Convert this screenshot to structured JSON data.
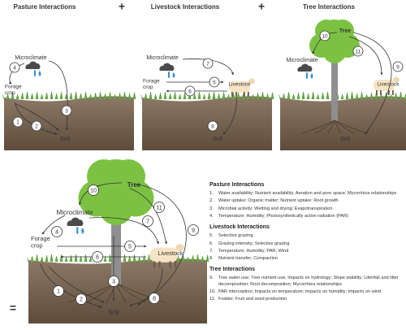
{
  "scenes": [
    {
      "title": "Pasture Interactions",
      "microclimate": "Microclimate",
      "forage": [
        "Forage",
        "crop"
      ],
      "soil": "Soil",
      "numbers": [
        "4",
        "3",
        "1",
        "2"
      ]
    },
    {
      "title": "Livestock Interactions",
      "microclimate": "Microclimate",
      "forage": [
        "Forage",
        "crop"
      ],
      "livestock": "Livestock",
      "soil": "Soil",
      "numbers": [
        "7",
        "5",
        "6",
        "8"
      ]
    },
    {
      "title": "Tree Interactions",
      "tree": "Tree",
      "microclimate": "Microclimate",
      "livestock": "Livestock",
      "soil": "Soil",
      "numbers": [
        "10",
        "11",
        "9"
      ]
    }
  ],
  "operators": [
    "+",
    "+",
    "="
  ],
  "combined": {
    "tree": "Tree",
    "microclimate": "Microclimate",
    "forage": [
      "Forage",
      "crop"
    ],
    "livestock": "Livestock",
    "soil": "Soil",
    "numbers": [
      "10",
      "11",
      "9",
      "7",
      "4",
      "5",
      "6",
      "3",
      "1",
      "2",
      "8"
    ]
  },
  "legend": {
    "sections": [
      {
        "heading": "Pasture Interactions",
        "items": [
          {
            "number": "1.",
            "text": "Water availability; Nutrient availability; Aeration and pore space; Mycorrhiza relationships"
          },
          {
            "number": "2.",
            "text": "Water uptake; Organic matter; Nutrient uptake; Root growth"
          },
          {
            "number": "3.",
            "text": "Microbial activity; Wetting and drying; Evapotranspiration"
          },
          {
            "number": "4.",
            "text": "Temperature; Humidity; Photosynthetically active radiation (PAR)"
          }
        ]
      },
      {
        "heading": "Livestock Interactions",
        "items": [
          {
            "number": "5.",
            "text": "Selective grazing"
          },
          {
            "number": "6.",
            "text": "Grazing intensity; Selective grazing"
          },
          {
            "number": "7.",
            "text": "Temperature; Humidity; PAR; Wind"
          },
          {
            "number": "8.",
            "text": "Nutrient transfer; Compaction"
          }
        ]
      },
      {
        "heading": "Tree Interactions",
        "items": [
          {
            "number": "9.",
            "text": "Tree water use; Tree nutrient use; Impacts on hydrology; Slope stability; Litterfall and litter decomposition; Root decomposition; Mycorrhiza relationships"
          },
          {
            "number": "10.",
            "text": "PAR interception; Impacts on temperature; Impacts on humidity; Impacts on wind"
          },
          {
            "number": "11.",
            "text": "Fodder; Fruit and seed production"
          }
        ]
      }
    ]
  }
}
